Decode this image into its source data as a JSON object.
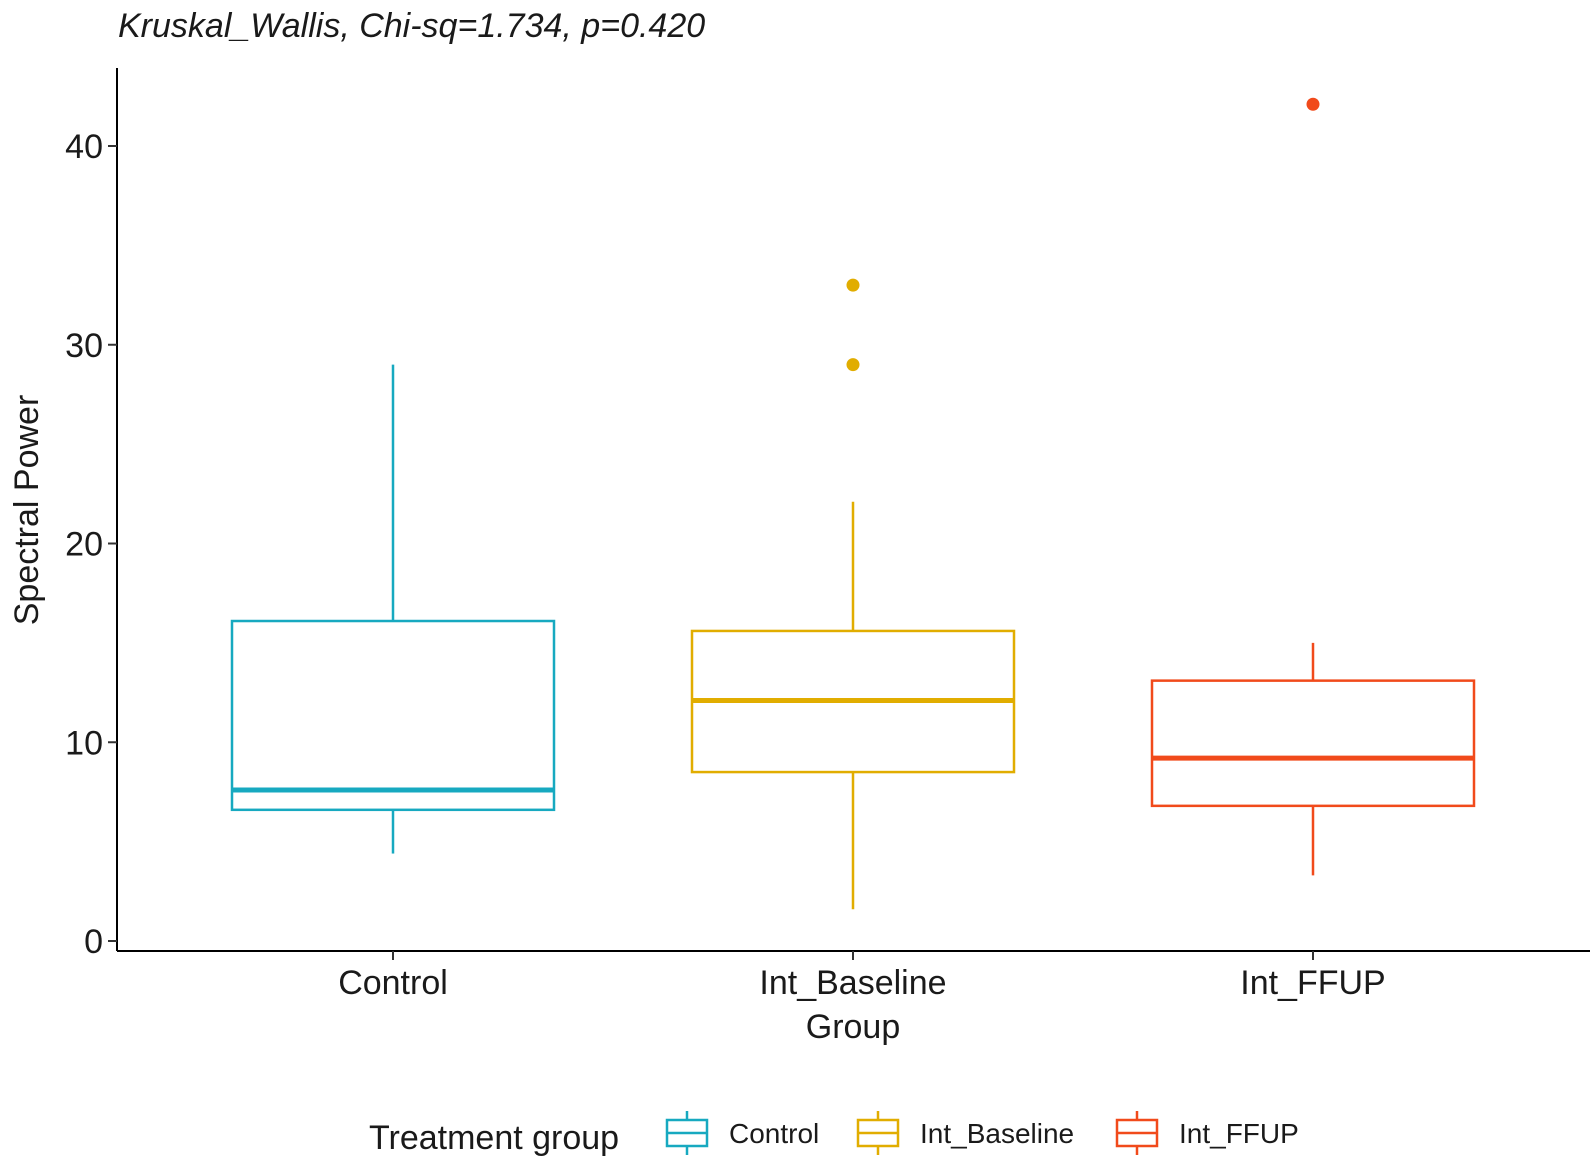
{
  "chart_data": {
    "type": "box",
    "subtitle": "Kruskal_Wallis, Chi-sq=1.734, p=0.420",
    "xlabel": "Group",
    "ylabel": "Spectral Power",
    "ylim": [
      0,
      44
    ],
    "yticks": [
      0,
      10,
      20,
      30,
      40
    ],
    "grid": false,
    "legend": {
      "title": "Treatment group",
      "position": "bottom"
    },
    "categories": [
      "Control",
      "Int_Baseline",
      "Int_FFUP"
    ],
    "series": [
      {
        "name": "Control",
        "color": "#17a9c0",
        "whisker_low": 4.4,
        "q1": 6.6,
        "median": 7.6,
        "q3": 16.1,
        "whisker_high": 29.0,
        "outliers": []
      },
      {
        "name": "Int_Baseline",
        "color": "#e1ad00",
        "whisker_low": 1.6,
        "q1": 8.5,
        "median": 12.1,
        "q3": 15.6,
        "whisker_high": 22.1,
        "outliers": [
          29.0,
          33.0
        ]
      },
      {
        "name": "Int_FFUP",
        "color": "#f14a1b",
        "whisker_low": 3.3,
        "q1": 6.8,
        "median": 9.2,
        "q3": 13.1,
        "whisker_high": 15.0,
        "outliers": [
          42.1
        ]
      }
    ]
  }
}
